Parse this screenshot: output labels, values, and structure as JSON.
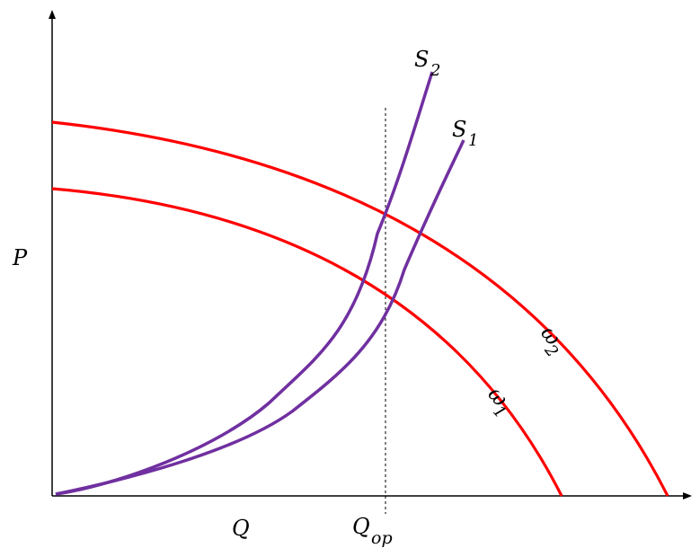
{
  "axes": {
    "y_label": "P",
    "x_label": "Q",
    "operating_point_label": {
      "base": "Q",
      "sub": "op"
    }
  },
  "curves": {
    "pump_high": {
      "symbol": "ω",
      "sub": "2"
    },
    "pump_low": {
      "symbol": "ω",
      "sub": "1"
    },
    "system_steep": {
      "symbol": "S",
      "sub": "2"
    },
    "system_shallow": {
      "symbol": "S",
      "sub": "1"
    }
  },
  "colors": {
    "pump_curve": "#ff0000",
    "system_curve": "#7030a0",
    "axis": "#000000",
    "guide_line": "#000000"
  }
}
